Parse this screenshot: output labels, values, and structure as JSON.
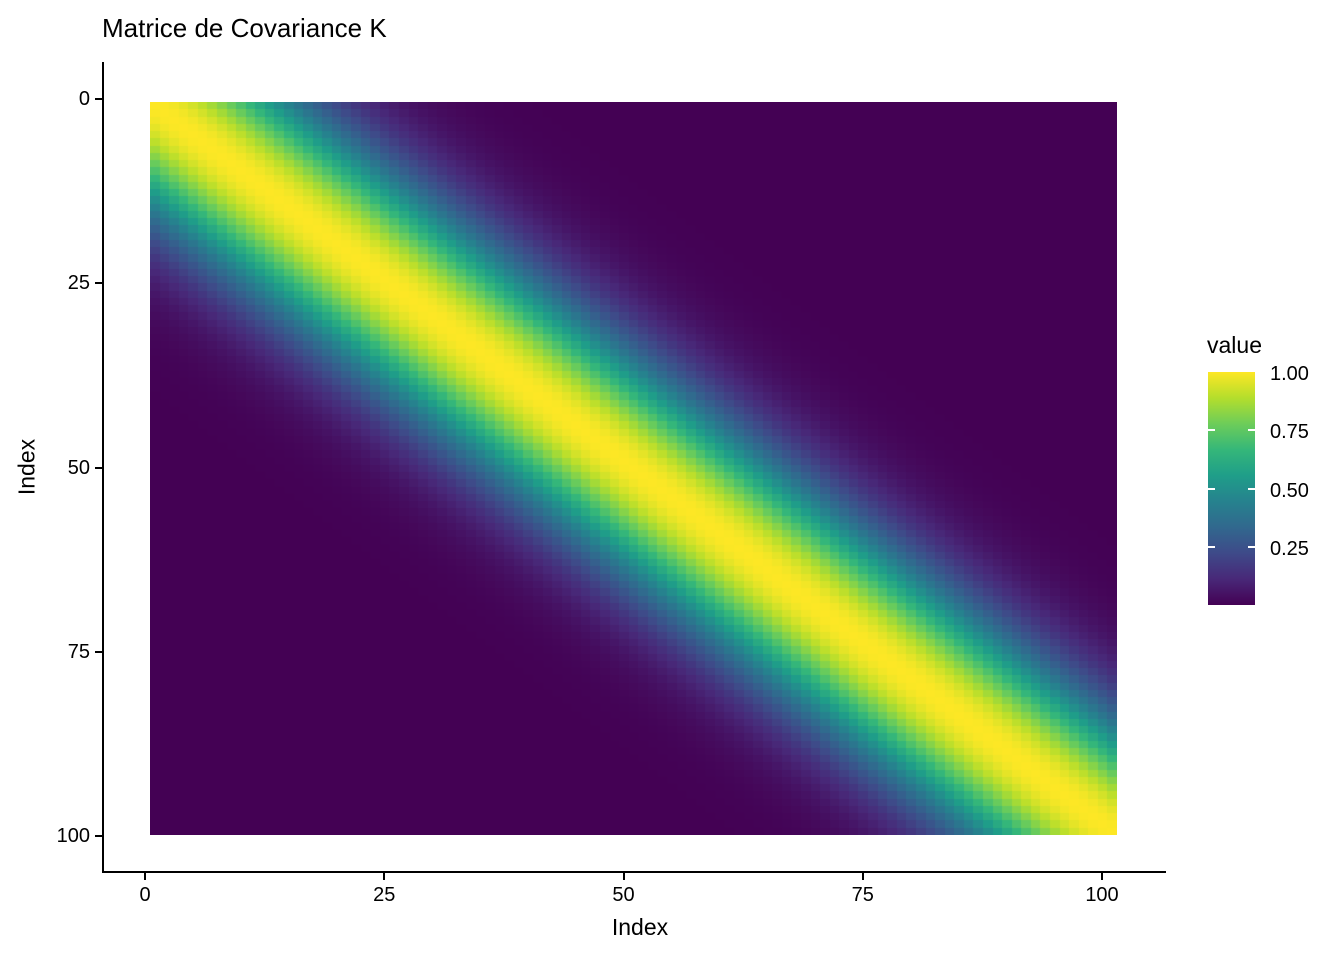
{
  "page": {
    "background_color": "#ffffff",
    "text_color": "#000000",
    "axis_color": "#000000"
  },
  "chart_data": {
    "type": "heatmap",
    "title": "Matrice de Covariance K",
    "xlabel": "Index",
    "ylabel": "Index",
    "x_ticks": [
      0,
      25,
      50,
      75,
      100
    ],
    "x_tick_labels": [
      "0",
      "25",
      "50",
      "75",
      "100"
    ],
    "y_ticks": [
      0,
      25,
      50,
      75,
      100
    ],
    "y_tick_labels": [
      "0",
      "25",
      "50",
      "75",
      "100"
    ],
    "x_range": [
      0,
      100
    ],
    "y_range": [
      0,
      100
    ],
    "y_axis_reversed": true,
    "grid": false,
    "n_rows": 101,
    "n_cols": 101,
    "kernel": "squared exponential (RBF) covariance matrix",
    "matrix_formula": "K[i][j] = exp(-((i - j)^2) / (2 * length_scale^2))",
    "length_scale": 11,
    "diagonal_value": 1.0,
    "value_range": [
      0,
      1
    ],
    "colormap": {
      "name": "viridis",
      "stops": [
        "#440154",
        "#482878",
        "#3E4A89",
        "#31688E",
        "#26828E",
        "#1F9E89",
        "#35B779",
        "#6DCD59",
        "#B4DE2C",
        "#FDE725"
      ]
    },
    "legend": {
      "title": "value",
      "position": "right",
      "tick_labels": [
        "1.00",
        "0.75",
        "0.50",
        "0.25"
      ],
      "tick_values": [
        1.0,
        0.75,
        0.5,
        0.25
      ],
      "dash_values": [
        0.75,
        0.5,
        0.25
      ]
    }
  }
}
